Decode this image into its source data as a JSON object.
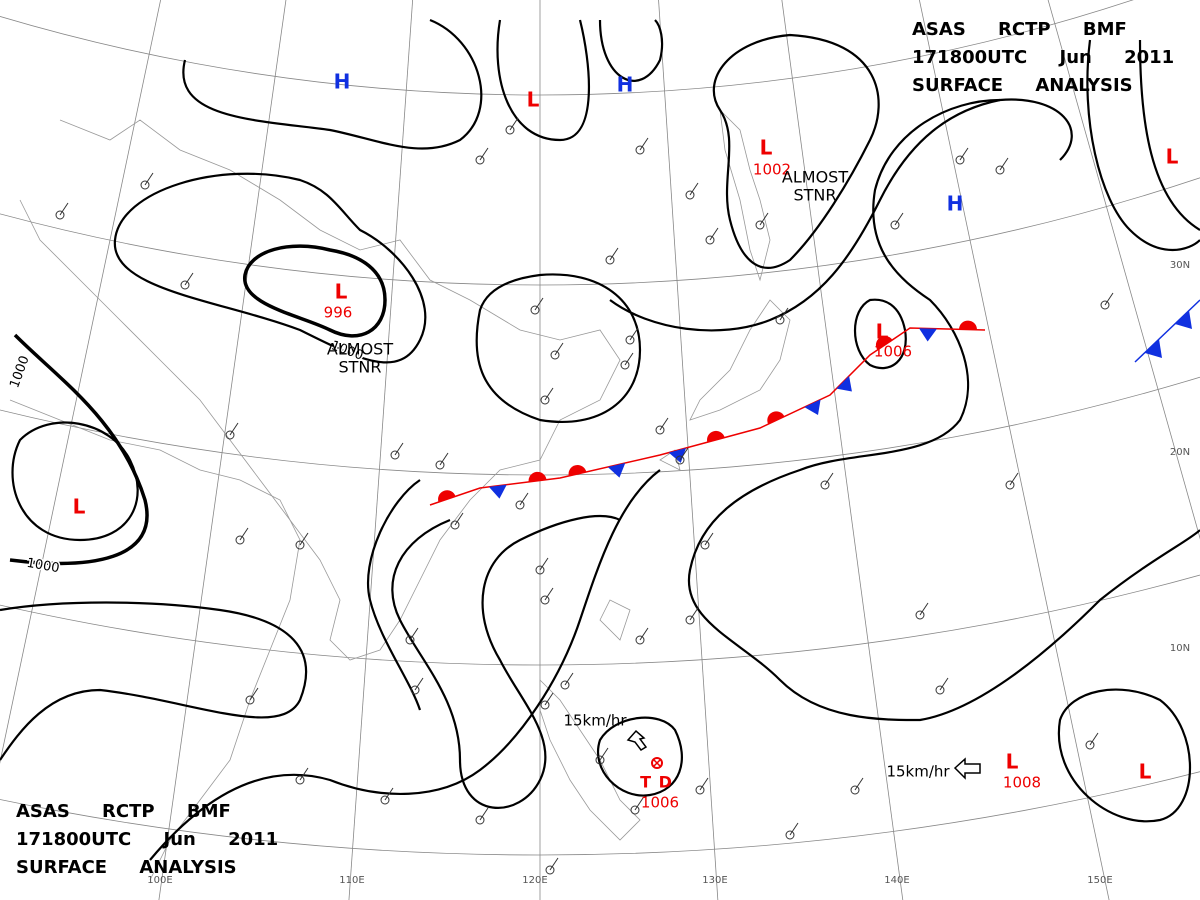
{
  "header_top": {
    "lines": [
      "ASAS RCTP BMF",
      "171800UTC Jun 2011",
      "SURFACE ANALYSIS"
    ]
  },
  "header_bottom": {
    "lines": [
      "ASAS RCTP BMF",
      "171800UTC Jun 2011",
      "SURFACE ANALYSIS"
    ]
  },
  "pressure_centers": [
    {
      "label": "H"
    },
    {
      "label": "L"
    },
    {
      "label": "H"
    },
    {
      "label": "L",
      "value": "1002"
    },
    {
      "label": "H"
    },
    {
      "label": "L"
    },
    {
      "label": "L",
      "value": "996"
    },
    {
      "label": "L",
      "value": "1006"
    },
    {
      "label": "L"
    },
    {
      "label": "L",
      "value": "1008"
    },
    {
      "label": "L"
    },
    {
      "label": "T D",
      "value": "1006"
    }
  ],
  "isobar_labels": [
    "1000",
    "1000",
    "1000"
  ],
  "annotations": [
    [
      "ALMOST",
      "STNR"
    ],
    [
      "ALMOST",
      "STNR"
    ]
  ],
  "motion_labels": [
    "15km/hr",
    "15km/hr"
  ],
  "longitude_labels": [
    "100E",
    "110E",
    "120E",
    "130E",
    "140E",
    "150E"
  ],
  "latitude_labels": [
    "30N",
    "20N",
    "10N"
  ]
}
